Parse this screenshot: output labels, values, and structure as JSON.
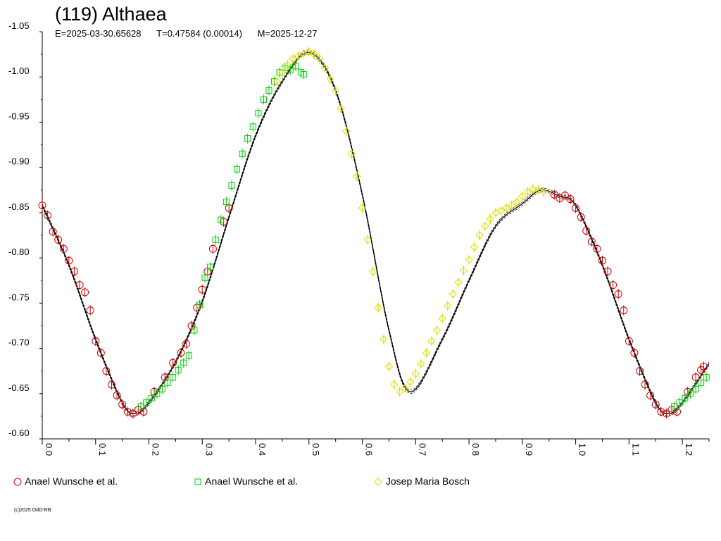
{
  "header": {
    "title": "(119) Althaea",
    "epoch": "E=2025-03-30.65628",
    "period": "T=0.47584 (0.00014)",
    "measured": "M=2025-12-27"
  },
  "copyright": "(c)2025 OdO-RB",
  "chart_data": {
    "type": "scatter",
    "title": "(119) Althaea",
    "xlabel": "",
    "ylabel": "",
    "xlim": [
      0.0,
      1.25
    ],
    "ylim": [
      -0.6,
      -1.05
    ],
    "y_inverted": true,
    "x_ticks": [
      "0.0",
      "0.1",
      "0.2",
      "0.3",
      "0.4",
      "0.5",
      "0.6",
      "0.7",
      "0.8",
      "0.9",
      "1.0",
      "1.1",
      "1.2"
    ],
    "y_ticks": [
      "-1.05",
      "-1.00",
      "-0.95",
      "-0.90",
      "-0.85",
      "-0.80",
      "-0.75",
      "-0.70",
      "-0.65",
      "-0.60"
    ],
    "legend_position": "bottom",
    "fit_curve": {
      "x": [
        0.0,
        0.05,
        0.1,
        0.15,
        0.175,
        0.2,
        0.25,
        0.3,
        0.35,
        0.4,
        0.45,
        0.5,
        0.55,
        0.6,
        0.65,
        0.69,
        0.75,
        0.8,
        0.85,
        0.9,
        0.935,
        0.97,
        1.0,
        1.05,
        1.1,
        1.15,
        1.175,
        1.2,
        1.25
      ],
      "y": [
        -0.858,
        -0.792,
        -0.71,
        -0.64,
        -0.628,
        -0.64,
        -0.685,
        -0.752,
        -0.845,
        -0.935,
        -0.995,
        -1.027,
        -0.985,
        -0.87,
        -0.72,
        -0.652,
        -0.71,
        -0.775,
        -0.835,
        -0.86,
        -0.875,
        -0.868,
        -0.858,
        -0.792,
        -0.71,
        -0.64,
        -0.628,
        -0.64,
        -0.683
      ]
    },
    "series": [
      {
        "name": "Anael Wunsche et al.",
        "marker": "circle",
        "color": "#cc0000",
        "x": [
          0.0,
          0.01,
          0.02,
          0.03,
          0.04,
          0.05,
          0.06,
          0.07,
          0.08,
          0.09,
          0.1,
          0.11,
          0.12,
          0.13,
          0.14,
          0.15,
          0.16,
          0.17,
          0.18,
          0.19,
          0.21,
          0.23,
          0.245,
          0.26,
          0.27,
          0.28,
          0.29,
          0.3,
          0.31,
          0.32,
          0.34,
          0.35,
          0.96,
          0.97,
          0.98,
          0.99,
          1.0,
          1.01,
          1.02,
          1.03,
          1.04,
          1.05,
          1.06,
          1.07,
          1.08,
          1.09,
          1.1,
          1.11,
          1.12,
          1.13,
          1.14,
          1.15,
          1.16,
          1.17,
          1.18,
          1.19,
          1.21,
          1.225,
          1.235,
          1.24
        ],
        "y": [
          -0.858,
          -0.847,
          -0.829,
          -0.82,
          -0.81,
          -0.797,
          -0.785,
          -0.77,
          -0.762,
          -0.742,
          -0.708,
          -0.695,
          -0.675,
          -0.66,
          -0.648,
          -0.638,
          -0.63,
          -0.628,
          -0.632,
          -0.63,
          -0.652,
          -0.668,
          -0.684,
          -0.695,
          -0.705,
          -0.725,
          -0.745,
          -0.765,
          -0.785,
          -0.81,
          -0.84,
          -0.855,
          -0.87,
          -0.866,
          -0.869,
          -0.865,
          -0.855,
          -0.845,
          -0.83,
          -0.818,
          -0.81,
          -0.797,
          -0.785,
          -0.77,
          -0.76,
          -0.742,
          -0.708,
          -0.695,
          -0.675,
          -0.66,
          -0.648,
          -0.638,
          -0.63,
          -0.628,
          -0.632,
          -0.63,
          -0.652,
          -0.668,
          -0.676,
          -0.68
        ]
      },
      {
        "name": "Anael Wunsche et al.",
        "marker": "square",
        "color": "#00cc00",
        "x": [
          0.185,
          0.195,
          0.205,
          0.215,
          0.225,
          0.235,
          0.245,
          0.255,
          0.265,
          0.275,
          0.285,
          0.295,
          0.305,
          0.315,
          0.325,
          0.335,
          0.345,
          0.355,
          0.365,
          0.375,
          0.385,
          0.395,
          0.405,
          0.415,
          0.425,
          0.435,
          0.445,
          0.455,
          0.465,
          0.475,
          0.485,
          0.49,
          1.185,
          1.195,
          1.205,
          1.215,
          1.225,
          1.235,
          1.245
        ],
        "y": [
          -0.636,
          -0.64,
          -0.645,
          -0.65,
          -0.655,
          -0.662,
          -0.668,
          -0.676,
          -0.684,
          -0.692,
          -0.72,
          -0.748,
          -0.778,
          -0.79,
          -0.82,
          -0.842,
          -0.862,
          -0.88,
          -0.898,
          -0.915,
          -0.932,
          -0.945,
          -0.96,
          -0.975,
          -0.985,
          -0.995,
          -1.005,
          -1.01,
          -1.008,
          -1.012,
          -1.005,
          -1.003,
          -0.636,
          -0.64,
          -0.645,
          -0.65,
          -0.655,
          -0.662,
          -0.668
        ]
      },
      {
        "name": "Josep Maria Bosch",
        "marker": "diamond",
        "color": "#dddd00",
        "x": [
          0.44,
          0.45,
          0.46,
          0.47,
          0.48,
          0.49,
          0.5,
          0.51,
          0.52,
          0.53,
          0.54,
          0.55,
          0.56,
          0.57,
          0.58,
          0.59,
          0.6,
          0.61,
          0.62,
          0.63,
          0.64,
          0.65,
          0.66,
          0.67,
          0.68,
          0.69,
          0.7,
          0.71,
          0.72,
          0.73,
          0.74,
          0.75,
          0.76,
          0.77,
          0.78,
          0.79,
          0.8,
          0.81,
          0.82,
          0.83,
          0.84,
          0.85,
          0.86,
          0.87,
          0.88,
          0.89,
          0.9,
          0.91,
          0.92,
          0.93,
          0.94
        ],
        "y": [
          -0.995,
          -1.005,
          -1.013,
          -1.02,
          -1.023,
          -1.026,
          -1.028,
          -1.025,
          -1.02,
          -1.01,
          -0.998,
          -0.985,
          -0.965,
          -0.94,
          -0.915,
          -0.89,
          -0.855,
          -0.82,
          -0.785,
          -0.745,
          -0.71,
          -0.68,
          -0.66,
          -0.652,
          -0.656,
          -0.663,
          -0.672,
          -0.683,
          -0.695,
          -0.708,
          -0.72,
          -0.733,
          -0.747,
          -0.76,
          -0.773,
          -0.786,
          -0.798,
          -0.812,
          -0.825,
          -0.835,
          -0.843,
          -0.85,
          -0.852,
          -0.855,
          -0.858,
          -0.862,
          -0.868,
          -0.873,
          -0.876,
          -0.875,
          -0.873
        ]
      }
    ]
  }
}
